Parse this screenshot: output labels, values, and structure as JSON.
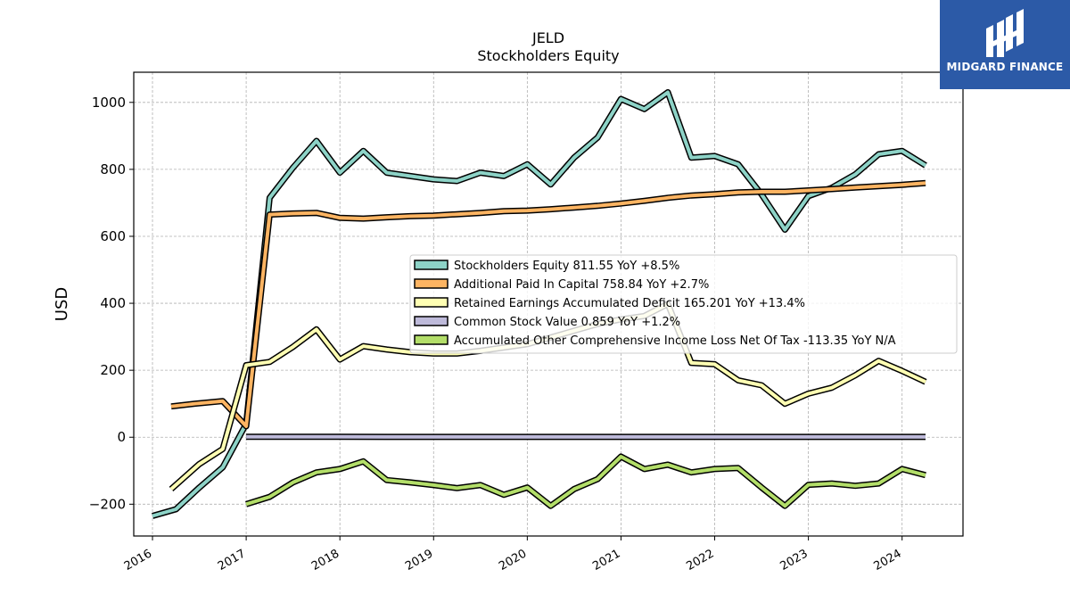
{
  "chart_data": {
    "type": "line",
    "title": "JELD",
    "subtitle": "Stockholders  Equity",
    "xlabel": "",
    "ylabel": "USD",
    "xlim": [
      2015.8,
      2024.65
    ],
    "ylim": [
      -295,
      1090
    ],
    "yticks": [
      -200,
      0,
      200,
      400,
      600,
      800,
      1000
    ],
    "xticks": [
      2016,
      2017,
      2018,
      2019,
      2020,
      2021,
      2022,
      2023,
      2024
    ],
    "grid": true,
    "legend_position": "center-right",
    "series": [
      {
        "name": "Stockholders Equity",
        "legend": "Stockholders Equity  811.55 YoY +8.5%",
        "color": "#8dd3c7",
        "x": [
          2016.0,
          2016.25,
          2016.5,
          2016.75,
          2017.0,
          2017.25,
          2017.5,
          2017.75,
          2018.0,
          2018.25,
          2018.5,
          2018.75,
          2019.0,
          2019.25,
          2019.5,
          2019.75,
          2020.0,
          2020.25,
          2020.5,
          2020.75,
          2021.0,
          2021.25,
          2021.5,
          2021.75,
          2022.0,
          2022.25,
          2022.5,
          2022.75,
          2023.0,
          2023.25,
          2023.5,
          2023.75,
          2024.0,
          2024.25
        ],
        "y": [
          -235,
          -215,
          -150,
          -90,
          40,
          715,
          805,
          885,
          790,
          855,
          790,
          780,
          770,
          765,
          790,
          780,
          815,
          755,
          835,
          895,
          1010,
          980,
          1030,
          835,
          840,
          815,
          725,
          620,
          720,
          745,
          785,
          845,
          855,
          811.55
        ]
      },
      {
        "name": "Additional Paid In Capital",
        "legend": "Additional Paid In Capital  758.84 YoY +2.7%",
        "color": "#fdb462",
        "x": [
          2016.2,
          2016.45,
          2016.75,
          2017.0,
          2017.25,
          2017.5,
          2017.75,
          2018.0,
          2018.25,
          2018.5,
          2018.75,
          2019.0,
          2019.25,
          2019.5,
          2019.75,
          2020.0,
          2020.25,
          2020.5,
          2020.75,
          2021.0,
          2021.25,
          2021.5,
          2021.75,
          2022.0,
          2022.25,
          2022.5,
          2022.75,
          2023.0,
          2023.25,
          2023.5,
          2023.75,
          2024.0,
          2024.25
        ],
        "y": [
          92,
          100,
          108,
          33,
          665,
          668,
          670,
          655,
          653,
          657,
          660,
          662,
          666,
          670,
          675,
          677,
          681,
          686,
          691,
          698,
          706,
          715,
          722,
          726,
          731,
          733,
          733,
          737,
          741,
          746,
          750,
          754,
          758.84
        ]
      },
      {
        "name": "Retained Earnings Accumulated Deficit",
        "legend": "Retained Earnings Accumulated Deficit  165.201 YoY +13.4%",
        "color": "#ffffb3",
        "x": [
          2016.2,
          2016.5,
          2016.75,
          2017.0,
          2017.25,
          2017.5,
          2017.75,
          2018.0,
          2018.25,
          2018.5,
          2018.75,
          2019.0,
          2019.25,
          2019.5,
          2019.75,
          2020.0,
          2020.25,
          2020.5,
          2020.75,
          2021.0,
          2021.25,
          2021.5,
          2021.75,
          2022.0,
          2022.25,
          2022.5,
          2022.75,
          2023.0,
          2023.25,
          2023.5,
          2023.75,
          2024.0,
          2024.25
        ],
        "y": [
          -155,
          -80,
          -35,
          215,
          225,
          270,
          322,
          232,
          272,
          262,
          254,
          250,
          250,
          258,
          268,
          278,
          298,
          318,
          338,
          352,
          362,
          398,
          222,
          218,
          170,
          155,
          100,
          130,
          148,
          185,
          228,
          198,
          165.2
        ]
      },
      {
        "name": "Common Stock Value",
        "legend": "Common Stock Value  0.859 YoY +1.2%",
        "color": "#bebada",
        "x": [
          2017.0,
          2017.25,
          2017.5,
          2017.75,
          2018.0,
          2018.5,
          2019.0,
          2019.5,
          2020.0,
          2020.5,
          2021.0,
          2021.5,
          2022.0,
          2022.5,
          2023.0,
          2023.5,
          2024.0,
          2024.25
        ],
        "y": [
          1.2,
          1.1,
          1.1,
          1.1,
          1.1,
          1.0,
          1.0,
          1.0,
          1.0,
          1.0,
          0.9,
          0.9,
          0.9,
          0.9,
          0.9,
          0.9,
          0.86,
          0.859
        ]
      },
      {
        "name": "Accumulated Other Comprehensive Income Loss Net Of Tax",
        "legend": "Accumulated Other Comprehensive Income Loss Net Of Tax  -113.35 YoY N/A",
        "color": "#b3de69",
        "x": [
          2017.0,
          2017.25,
          2017.5,
          2017.75,
          2018.0,
          2018.25,
          2018.5,
          2018.75,
          2019.0,
          2019.25,
          2019.5,
          2019.75,
          2020.0,
          2020.25,
          2020.5,
          2020.75,
          2021.0,
          2021.25,
          2021.5,
          2021.75,
          2022.0,
          2022.25,
          2022.5,
          2022.75,
          2023.0,
          2023.25,
          2023.5,
          2023.75,
          2024.0,
          2024.25
        ],
        "y": [
          -200,
          -178,
          -135,
          -105,
          -95,
          -72,
          -128,
          -135,
          -143,
          -152,
          -143,
          -172,
          -150,
          -205,
          -155,
          -125,
          -58,
          -95,
          -82,
          -105,
          -95,
          -92,
          -150,
          -205,
          -142,
          -138,
          -145,
          -138,
          -95,
          -113.35
        ]
      }
    ]
  },
  "logo": {
    "text": "MIDGARD FINANCE",
    "background": "#2c5aa7"
  }
}
